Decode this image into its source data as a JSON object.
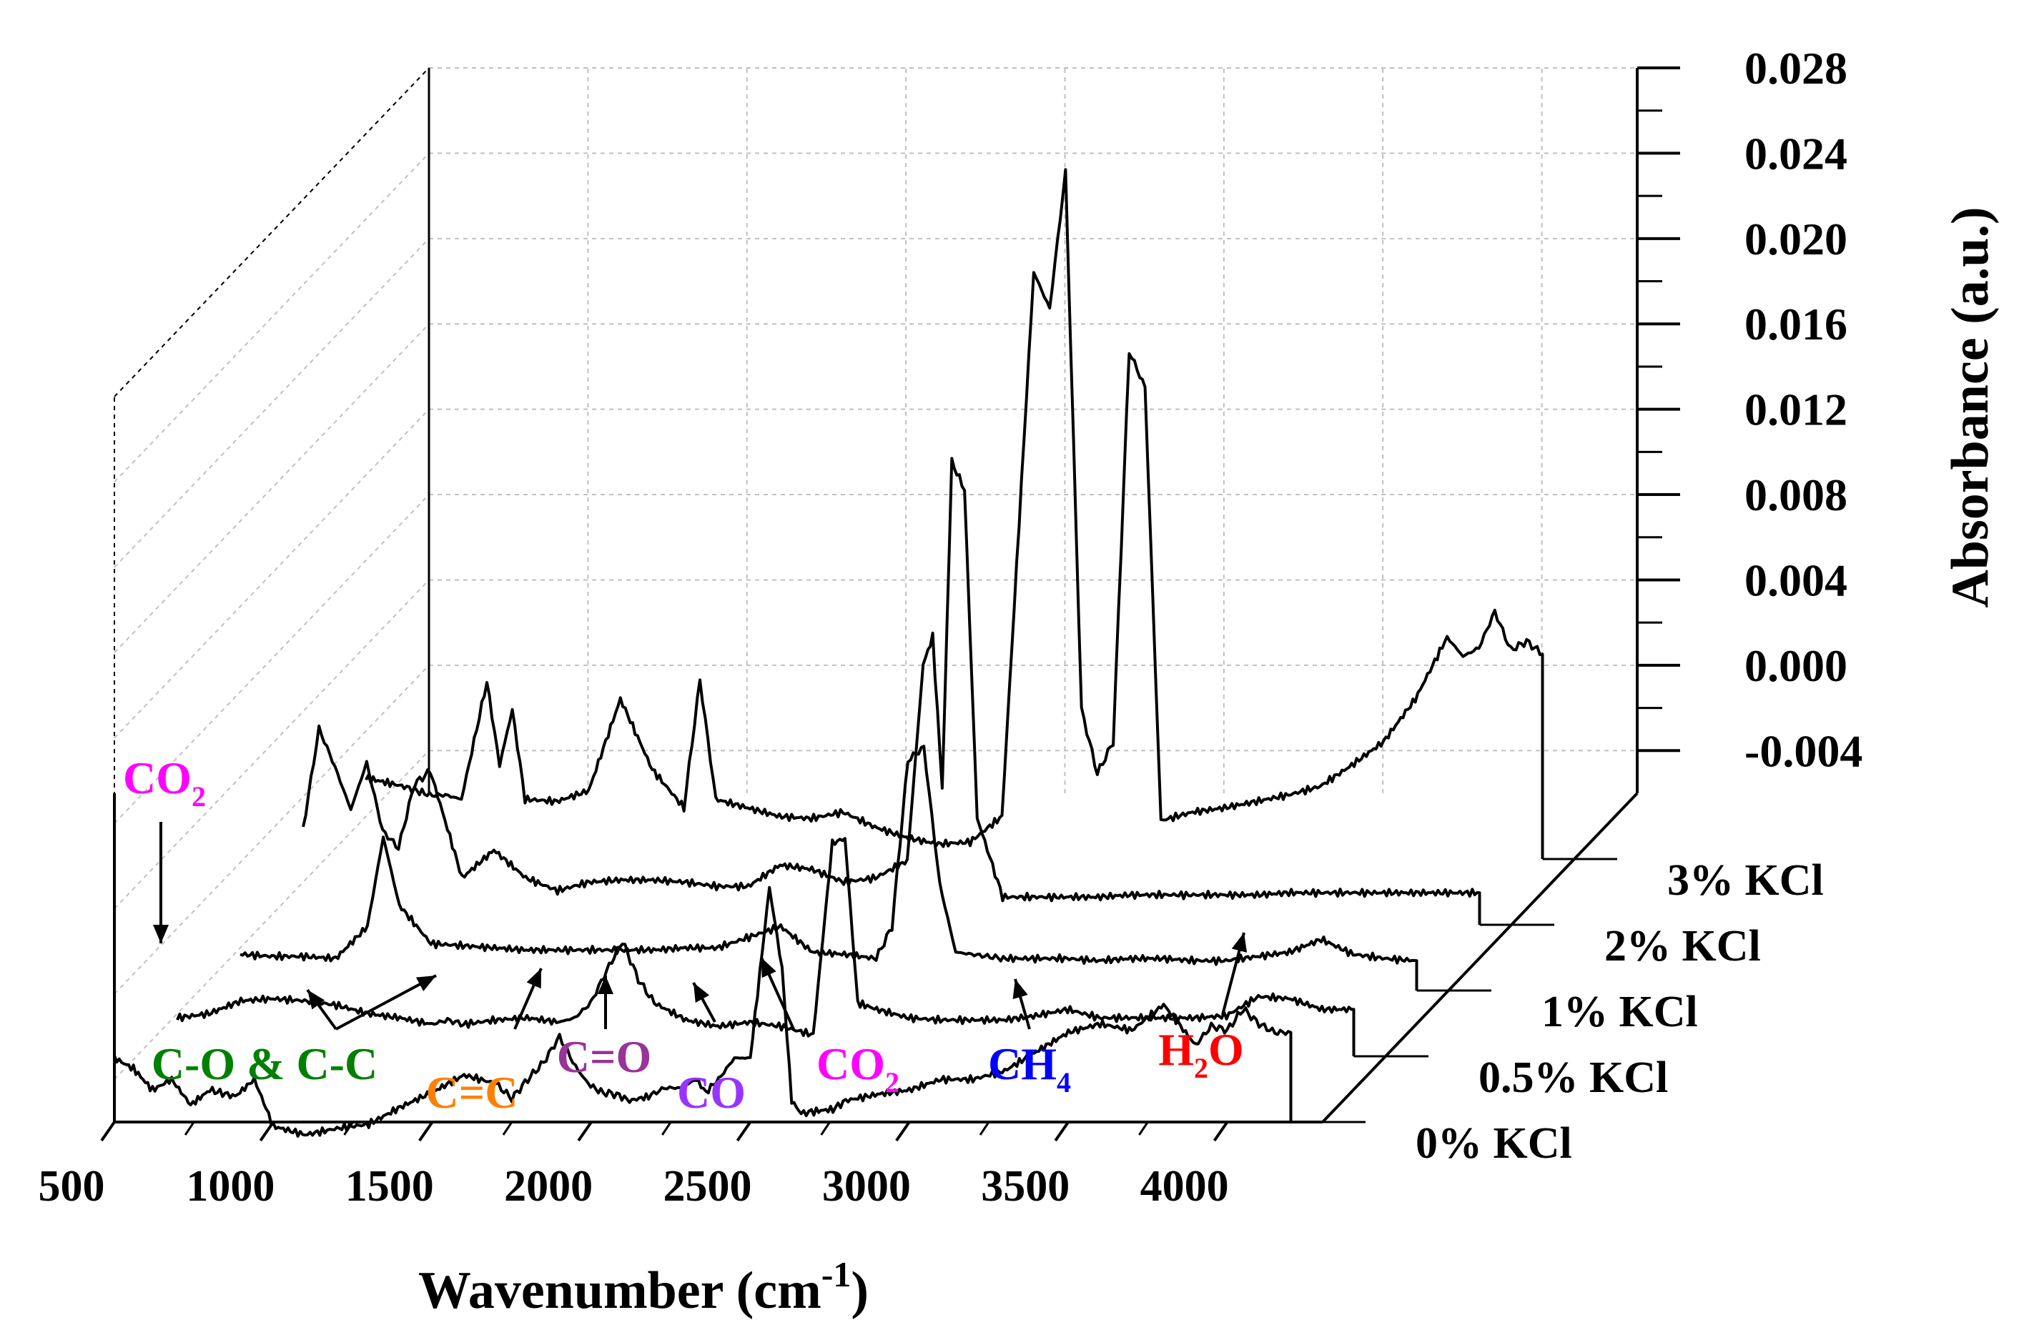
{
  "chart_data": {
    "type": "line",
    "subtype": "3d-waterfall",
    "title": "",
    "xlabel": "Wavenumber (cm",
    "xlabel_sup": "-1",
    "xlabel_close": ")",
    "ylabel": "Absorbance (a.u.)",
    "xlim": [
      500,
      4300
    ],
    "ylim": [
      -0.006,
      0.028
    ],
    "xticks": [
      "500",
      "1000",
      "1500",
      "2000",
      "2500",
      "3000",
      "3500",
      "4000"
    ],
    "yticks": [
      "0.028",
      "0.024",
      "0.020",
      "0.016",
      "0.012",
      "0.008",
      "0.004",
      "0.000",
      "-0.004"
    ],
    "series": [
      {
        "name": "0% KCl",
        "x": [
          500,
          560,
          620,
          680,
          740,
          800,
          880,
          940,
          1000,
          1100,
          1200,
          1300,
          1400,
          1500,
          1600,
          1700,
          1750,
          1800,
          1850,
          1900,
          1950,
          1990,
          2030,
          2080,
          2120,
          2180,
          2230,
          2280,
          2330,
          2360,
          2400,
          2450,
          2500,
          2560,
          2600,
          2630,
          2660,
          2700,
          2760,
          2800,
          2900,
          3000,
          3100,
          3200,
          3300,
          3400,
          3500,
          3600,
          3700,
          3800,
          3900,
          3950,
          4000,
          4050,
          4100,
          4150,
          4200
        ],
        "values": [
          -0.003,
          -0.0035,
          -0.0045,
          -0.004,
          -0.0052,
          -0.0045,
          -0.0048,
          -0.004,
          -0.0062,
          -0.0066,
          -0.0063,
          -0.0061,
          -0.0053,
          -0.0046,
          -0.0038,
          -0.0042,
          -0.0049,
          -0.004,
          -0.0032,
          -0.002,
          -0.0034,
          -0.0042,
          -0.0046,
          -0.0047,
          -0.005,
          -0.0048,
          -0.0044,
          -0.0044,
          -0.004,
          -0.0046,
          -0.004,
          -0.003,
          -0.003,
          0.005,
          0.0012,
          -0.005,
          -0.0056,
          -0.0055,
          -0.0054,
          -0.005,
          -0.0047,
          -0.0045,
          -0.004,
          -0.004,
          -0.0036,
          -0.0027,
          -0.0018,
          -0.0014,
          -0.0017,
          -0.0005,
          -0.0024,
          -0.0015,
          -0.0017,
          -0.0007,
          -0.0014,
          -0.0018,
          -0.0018
        ]
      },
      {
        "name": "0.5% KCl",
        "x": [
          500,
          600,
          700,
          800,
          900,
          1000,
          1100,
          1200,
          1300,
          1350,
          1400,
          1500,
          1600,
          1700,
          1750,
          1800,
          1850,
          1900,
          1950,
          2000,
          2100,
          2200,
          2300,
          2400,
          2500,
          2560,
          2600,
          2640,
          2700,
          2800,
          2900,
          3000,
          3100,
          3200,
          3300,
          3400,
          3500,
          3600,
          3700,
          3800,
          3900,
          4000,
          4100,
          4200
        ],
        "values": [
          -0.0042,
          -0.004,
          -0.0034,
          -0.0033,
          -0.0034,
          -0.0036,
          -0.004,
          -0.0042,
          -0.0045,
          -0.0043,
          -0.0045,
          -0.0043,
          -0.0042,
          -0.0044,
          -0.0042,
          -0.0035,
          -0.002,
          -0.0006,
          -0.0024,
          -0.0035,
          -0.0043,
          -0.0046,
          -0.0044,
          -0.0046,
          -0.005,
          0.004,
          0.0042,
          -0.0035,
          -0.0038,
          -0.0042,
          -0.0043,
          -0.0043,
          -0.0043,
          -0.0041,
          -0.0038,
          -0.0042,
          -0.0042,
          -0.0042,
          -0.0042,
          -0.0041,
          -0.0032,
          -0.0033,
          -0.0038,
          -0.0038
        ]
      },
      {
        "name": "1% KCl",
        "x": [
          500,
          600,
          700,
          800,
          900,
          950,
          1000,
          1100,
          1200,
          1300,
          1400,
          1500,
          1600,
          1700,
          1800,
          1900,
          2000,
          2100,
          2200,
          2300,
          2400,
          2500,
          2550,
          2600,
          2650,
          2700,
          2750,
          2800,
          2850,
          2900,
          3000,
          3100,
          3200,
          3300,
          3400,
          3500,
          3600,
          3700,
          3800,
          3900,
          4000,
          4100,
          4200
        ],
        "values": [
          -0.0043,
          -0.0044,
          -0.0044,
          -0.0045,
          -0.003,
          0.0012,
          -0.002,
          -0.0038,
          -0.0039,
          -0.004,
          -0.0041,
          -0.0041,
          -0.0041,
          -0.0041,
          -0.0041,
          -0.004,
          -0.004,
          -0.0035,
          -0.003,
          -0.0042,
          -0.0043,
          -0.0045,
          -0.003,
          0.0048,
          0.0054,
          -0.001,
          -0.0042,
          -0.0043,
          -0.0044,
          -0.0045,
          -0.0045,
          -0.0045,
          -0.0046,
          -0.0045,
          -0.0045,
          -0.0046,
          -0.0046,
          -0.0044,
          -0.0042,
          -0.0036,
          -0.0043,
          -0.0045,
          -0.0046
        ]
      },
      {
        "name": "2% KCl",
        "x": [
          500,
          550,
          600,
          650,
          700,
          750,
          800,
          850,
          900,
          1000,
          1100,
          1200,
          1300,
          1400,
          1500,
          1600,
          1700,
          1800,
          1900,
          2000,
          2100,
          2200,
          2300,
          2400,
          2450,
          2480,
          2510,
          2540,
          2580,
          2620,
          2700,
          2800,
          2900,
          3000,
          3100,
          3200,
          3300,
          3400,
          3500,
          3600,
          3700,
          3800,
          3900,
          4000,
          4100,
          4200
        ],
        "values": [
          -0.0015,
          0.0032,
          0.0014,
          -0.0006,
          0.0016,
          -0.0016,
          -0.0024,
          0.0006,
          0.0012,
          -0.0038,
          -0.0025,
          -0.0038,
          -0.0044,
          -0.004,
          -0.0039,
          -0.0039,
          -0.004,
          -0.0042,
          -0.0042,
          -0.0032,
          -0.0034,
          -0.004,
          -0.0038,
          -0.003,
          0.0062,
          0.0075,
          0.0004,
          0.0157,
          0.0144,
          -0.001,
          -0.0047,
          -0.0047,
          -0.0047,
          -0.0047,
          -0.0046,
          -0.0046,
          -0.0046,
          -0.0046,
          -0.0046,
          -0.0045,
          -0.0045,
          -0.0045,
          -0.0045,
          -0.0045,
          -0.0045,
          -0.0045
        ]
      },
      {
        "name": "3% KCl",
        "x": [
          500,
          560,
          620,
          700,
          750,
          800,
          880,
          920,
          960,
          1000,
          1100,
          1200,
          1300,
          1400,
          1500,
          1550,
          1600,
          1700,
          1800,
          1900,
          2000,
          2100,
          2200,
          2300,
          2400,
          2500,
          2600,
          2650,
          2700,
          2750,
          2800,
          2850,
          2900,
          2950,
          3000,
          3100,
          3200,
          3300,
          3400,
          3500,
          3600,
          3700,
          3800,
          3900,
          3950,
          4000,
          4050,
          4100,
          4150,
          4200
        ],
        "values": [
          -0.0022,
          -0.0024,
          -0.0026,
          -0.003,
          -0.003,
          -0.0032,
          0.0023,
          -0.0016,
          0.001,
          -0.0032,
          -0.0033,
          -0.0028,
          0.0015,
          -0.0018,
          -0.0036,
          0.0024,
          -0.0032,
          -0.0036,
          -0.004,
          -0.0041,
          -0.0038,
          -0.0045,
          -0.005,
          -0.0053,
          -0.0052,
          -0.004,
          0.0215,
          0.0198,
          0.0262,
          0.001,
          -0.002,
          -0.0005,
          0.0178,
          0.0161,
          -0.0042,
          -0.0038,
          -0.0036,
          -0.0033,
          -0.003,
          -0.0026,
          -0.0016,
          -0.0005,
          0.0015,
          0.0044,
          0.0035,
          0.0039,
          0.0056,
          0.0038,
          0.0042,
          0.0036
        ]
      }
    ],
    "annotations": [
      {
        "text": "CO",
        "sub": "2",
        "color": "#ff00ff",
        "target_x": 600,
        "series": "0% KCl"
      },
      {
        "text": "C-O & C-C",
        "color": "#008000",
        "target_x": 1400,
        "series": "0% KCl"
      },
      {
        "text": "C=C",
        "color": "#ff8000",
        "target_x": 1880,
        "series": "0% KCl"
      },
      {
        "text": "C=O",
        "color": "#993399",
        "target_x": 2110,
        "series": "0% KCl"
      },
      {
        "text": "CO",
        "color": "#9933ff",
        "target_x": 2320,
        "series": "0% KCl"
      },
      {
        "text": "CO",
        "sub": "2",
        "color": "#ff00ff",
        "target_x": 2600,
        "series": "0% KCl"
      },
      {
        "text": "CH",
        "sub": "4",
        "color": "#0000ff",
        "target_x": 3160,
        "series": "0% KCl"
      },
      {
        "text": "H",
        "sub": "2",
        "tail": "O",
        "color": "#ff0000",
        "target_x": 3850,
        "series": "0% KCl"
      }
    ],
    "legend": "series labels along depth axis, right side",
    "grid": true,
    "colors": {
      "line": "#000000",
      "grid": "#c0c0c0"
    }
  }
}
